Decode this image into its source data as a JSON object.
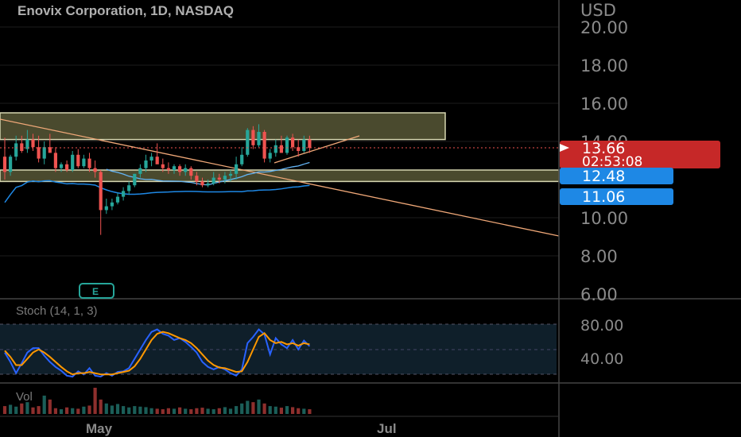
{
  "header": {
    "title": "Enovix Corporation, 1D, NASDAQ"
  },
  "price_axis": {
    "currency": "USD",
    "ticks": [
      "20.00",
      "18.00",
      "16.00",
      "14.00",
      "10.00",
      "8.00",
      "6.00"
    ]
  },
  "price_labels": {
    "last_price": "13.66",
    "countdown": "02:53:08",
    "ma_fast": "12.48",
    "ma_slow": "11.06"
  },
  "earnings_marker": {
    "label": "E"
  },
  "stoch": {
    "label": "Stoch (14, 1, 3)",
    "ticks": [
      "80.00",
      "40.00"
    ]
  },
  "volume": {
    "label": "Vol"
  },
  "time_axis": {
    "labels": [
      "May",
      "Jul"
    ]
  },
  "colors": {
    "up": "#26a69a",
    "down": "#ef5350",
    "last_price_bg": "#c62828",
    "ma_label_bg": "#1e88e5",
    "trendline": "#f0a878",
    "zone_fill": "#4a4a2e",
    "stoch_k": "#2962ff",
    "stoch_d": "#ff9800"
  },
  "chart_data": {
    "type": "candlestick",
    "ylim": [
      6,
      20.5
    ],
    "candles": [
      [
        13.2,
        14.2,
        12.0,
        12.4
      ],
      [
        12.4,
        13.3,
        12.2,
        13.2
      ],
      [
        13.2,
        14.3,
        13.0,
        13.9
      ],
      [
        13.9,
        14.3,
        13.4,
        13.5
      ],
      [
        13.6,
        14.6,
        13.4,
        14.1
      ],
      [
        14.1,
        14.4,
        13.5,
        13.7
      ],
      [
        13.7,
        14.3,
        12.9,
        13.1
      ],
      [
        13.1,
        14.0,
        12.8,
        13.7
      ],
      [
        13.7,
        14.4,
        13.5,
        13.4
      ],
      [
        13.4,
        13.7,
        12.4,
        12.6
      ],
      [
        12.6,
        12.9,
        12.4,
        12.8
      ],
      [
        12.8,
        13.0,
        12.4,
        12.5
      ],
      [
        12.5,
        13.5,
        12.4,
        13.3
      ],
      [
        13.3,
        13.6,
        12.6,
        12.7
      ],
      [
        12.7,
        13.3,
        12.6,
        13.1
      ],
      [
        13.1,
        13.4,
        12.4,
        12.6
      ],
      [
        12.6,
        13.0,
        12.1,
        12.4
      ],
      [
        12.4,
        12.5,
        9.1,
        10.4
      ],
      [
        10.4,
        11.0,
        10.2,
        10.6
      ],
      [
        10.6,
        11.0,
        10.4,
        10.8
      ],
      [
        10.8,
        11.3,
        10.7,
        11.1
      ],
      [
        11.1,
        11.6,
        10.9,
        11.4
      ],
      [
        11.4,
        11.9,
        11.2,
        11.7
      ],
      [
        11.7,
        12.3,
        11.6,
        12.3
      ],
      [
        12.3,
        12.8,
        12.1,
        12.6
      ],
      [
        12.6,
        13.3,
        12.4,
        13.0
      ],
      [
        13.0,
        13.4,
        12.7,
        13.2
      ],
      [
        13.2,
        13.9,
        12.9,
        12.8
      ],
      [
        12.8,
        13.1,
        12.4,
        12.6
      ],
      [
        12.6,
        12.9,
        12.3,
        12.5
      ],
      [
        12.5,
        12.8,
        12.3,
        12.7
      ],
      [
        12.7,
        12.8,
        12.2,
        12.4
      ],
      [
        12.4,
        12.8,
        12.2,
        12.6
      ],
      [
        12.6,
        12.7,
        12.0,
        12.2
      ],
      [
        12.2,
        12.4,
        11.7,
        11.9
      ],
      [
        11.9,
        12.1,
        11.6,
        11.7
      ],
      [
        11.7,
        12.0,
        11.6,
        11.8
      ],
      [
        11.8,
        12.4,
        11.7,
        12.1
      ],
      [
        12.1,
        12.3,
        11.8,
        12.0
      ],
      [
        12.0,
        12.4,
        11.8,
        12.2
      ],
      [
        12.2,
        12.5,
        11.9,
        12.3
      ],
      [
        12.3,
        13.2,
        12.0,
        12.8
      ],
      [
        12.8,
        13.7,
        12.7,
        13.3
      ],
      [
        13.3,
        14.7,
        13.2,
        14.6
      ],
      [
        14.6,
        14.8,
        13.6,
        13.8
      ],
      [
        13.8,
        14.9,
        13.7,
        14.5
      ],
      [
        14.5,
        14.6,
        12.9,
        13.1
      ],
      [
        13.1,
        13.6,
        12.9,
        13.4
      ],
      [
        13.4,
        14.1,
        13.2,
        13.8
      ],
      [
        13.8,
        14.3,
        13.4,
        13.4
      ],
      [
        13.4,
        14.3,
        13.3,
        14.2
      ],
      [
        14.2,
        14.4,
        13.5,
        13.7
      ],
      [
        13.7,
        14.1,
        13.2,
        13.5
      ],
      [
        13.5,
        14.3,
        13.4,
        14.1
      ],
      [
        14.1,
        14.3,
        13.4,
        13.66
      ]
    ],
    "resistance_zone": [
      14.1,
      15.5
    ],
    "support_zone": [
      11.9,
      12.5
    ],
    "ma_fast_end": 12.48,
    "ma_slow_end": 11.06,
    "stoch_range": [
      0,
      100
    ],
    "stoch_k": [
      55,
      40,
      22,
      38,
      55,
      62,
      62,
      50,
      40,
      32,
      26,
      18,
      15,
      25,
      20,
      30,
      18,
      14,
      22,
      18,
      24,
      25,
      30,
      45,
      60,
      75,
      88,
      92,
      85,
      82,
      75,
      78,
      72,
      64,
      55,
      40,
      32,
      28,
      32,
      28,
      22,
      18,
      28,
      70,
      80,
      92,
      84,
      52,
      78,
      68,
      62,
      75,
      60,
      74,
      65
    ],
    "stoch_d": [
      58,
      48,
      35,
      35,
      45,
      55,
      60,
      55,
      48,
      40,
      32,
      25,
      20,
      22,
      22,
      24,
      22,
      20,
      20,
      20,
      22,
      24,
      26,
      33,
      45,
      60,
      75,
      85,
      88,
      86,
      82,
      78,
      75,
      70,
      62,
      52,
      42,
      35,
      31,
      30,
      27,
      24,
      25,
      40,
      60,
      80,
      86,
      75,
      70,
      72,
      68,
      70,
      66,
      70,
      68
    ],
    "volume": [
      30,
      35,
      28,
      40,
      45,
      25,
      30,
      70,
      55,
      22,
      18,
      25,
      22,
      20,
      28,
      32,
      100,
      55,
      40,
      32,
      38,
      30,
      25,
      30,
      28,
      26,
      22,
      20,
      18,
      22,
      20,
      25,
      20,
      18,
      22,
      24,
      20,
      18,
      22,
      26,
      20,
      30,
      40,
      50,
      45,
      55,
      40,
      30,
      28,
      24,
      30,
      26,
      22,
      20,
      18
    ]
  }
}
